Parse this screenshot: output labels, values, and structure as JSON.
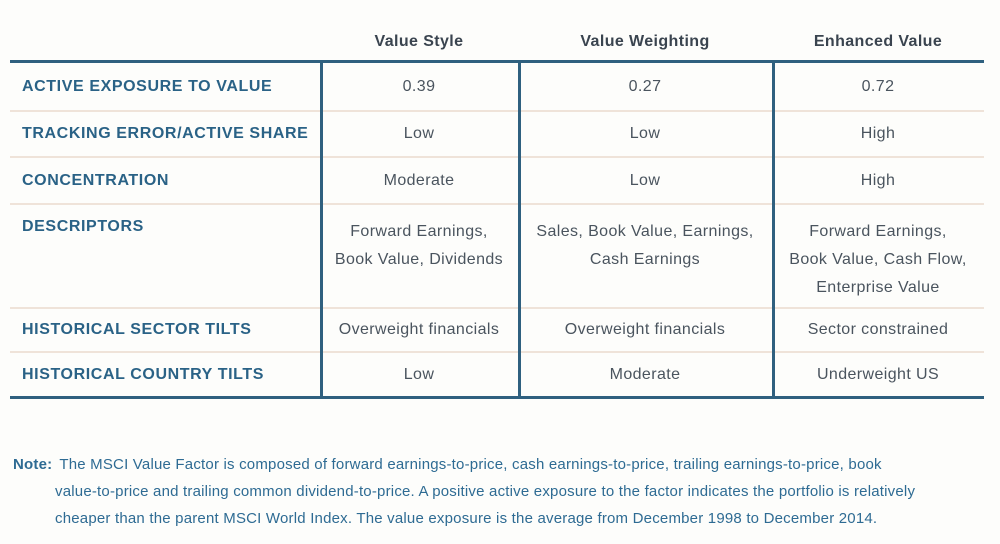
{
  "title": "Value factor strategies comparison table",
  "colors": {
    "accent_border": "#2F607F",
    "row_divider": "#EFE3D9",
    "row_label_blue": "#2A6286",
    "header_text": "#3A444F",
    "cell_text": "#4A545E",
    "note_text": "#2E6B93",
    "background": "#FDFDFB"
  },
  "table": {
    "columns": [
      "",
      "Value Style",
      "Value Weighting",
      "Enhanced Value"
    ],
    "rows": [
      {
        "label": "ACTIVE EXPOSURE TO VALUE",
        "cells": [
          "0.39",
          "0.27",
          "0.72"
        ]
      },
      {
        "label": "TRACKING ERROR/ACTIVE SHARE",
        "cells": [
          "Low",
          "Low",
          "High"
        ]
      },
      {
        "label": "CONCENTRATION",
        "cells": [
          "Moderate",
          "Low",
          "High"
        ]
      },
      {
        "label": "DESCRIPTORS",
        "cells": [
          "Forward Earnings,\nBook Value, Dividends",
          "Sales, Book Value, Earnings,\nCash Earnings",
          "Forward Earnings,\nBook Value, Cash Flow,\nEnterprise Value"
        ]
      },
      {
        "label": "HISTORICAL SECTOR TILTS",
        "cells": [
          "Overweight financials",
          "Overweight financials",
          "Sector constrained"
        ]
      },
      {
        "label": "HISTORICAL COUNTRY TILTS",
        "cells": [
          "Low",
          "Moderate",
          "Underweight US"
        ]
      }
    ]
  },
  "note": {
    "label": "Note:",
    "lines": [
      "The MSCI Value Factor is composed of forward earnings-to-price, cash earnings-to-price, trailing earnings-to-price, book",
      "value-to-price and trailing common dividend-to-price. A positive active exposure to the factor indicates the portfolio is relatively",
      "cheaper than the parent MSCI World Index. The value exposure is the average from December 1998 to December 2014."
    ]
  }
}
